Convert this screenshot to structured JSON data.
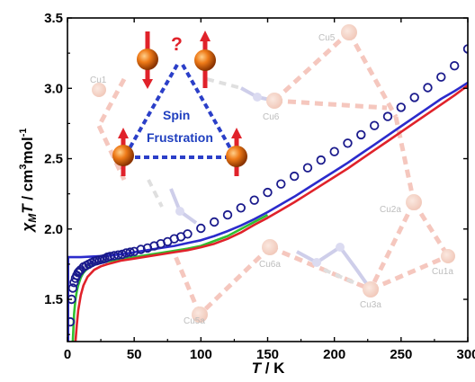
{
  "chart_data": {
    "type": "line",
    "xlabel": {
      "italic": "T",
      "rest": " / K"
    },
    "ylabel": {
      "chi": "χ",
      "sub": "M",
      "T": "T",
      "unit1": " / cm",
      "sup1": "3",
      "unit2": "mol",
      "sup2": "-1"
    },
    "xlim": [
      0,
      300
    ],
    "ylim": [
      1.2,
      3.5
    ],
    "xticks": [
      0,
      50,
      100,
      150,
      200,
      250,
      300
    ],
    "yticks": [
      1.5,
      2.0,
      2.5,
      3.0,
      3.5
    ],
    "grid": false,
    "legend": "none",
    "series": [
      {
        "style": "open-circles",
        "color": "#1a1a8c",
        "x": [
          2,
          3,
          4,
          5,
          6,
          7,
          8,
          9,
          10,
          12,
          14,
          16,
          18,
          20,
          22,
          24,
          26,
          28,
          30,
          32,
          35,
          38,
          41,
          44,
          47,
          50,
          55,
          60,
          65,
          70,
          75,
          80,
          85,
          90,
          100,
          110,
          120,
          130,
          140,
          150,
          160,
          170,
          180,
          190,
          200,
          210,
          220,
          230,
          240,
          250,
          260,
          270,
          280,
          290,
          300
        ],
        "y": [
          1.34,
          1.5,
          1.58,
          1.62,
          1.65,
          1.67,
          1.69,
          1.7,
          1.71,
          1.73,
          1.74,
          1.75,
          1.76,
          1.77,
          1.775,
          1.78,
          1.785,
          1.79,
          1.8,
          1.805,
          1.81,
          1.815,
          1.82,
          1.83,
          1.835,
          1.84,
          1.855,
          1.865,
          1.88,
          1.895,
          1.91,
          1.93,
          1.945,
          1.965,
          2.005,
          2.05,
          2.1,
          2.15,
          2.205,
          2.26,
          2.32,
          2.375,
          2.435,
          2.49,
          2.55,
          2.61,
          2.67,
          2.735,
          2.8,
          2.865,
          2.935,
          3.005,
          3.08,
          3.16,
          3.28
        ]
      },
      {
        "style": "line",
        "color": "#2b2bcc",
        "x": [
          0.5,
          0.5,
          1,
          2,
          5,
          10,
          20,
          30,
          40,
          50,
          60,
          70,
          80,
          90,
          100,
          110,
          120,
          130,
          140,
          150,
          160,
          170,
          180,
          190,
          200,
          210,
          220,
          230,
          240,
          250,
          260,
          270,
          280,
          290,
          300
        ],
        "y": [
          1.2,
          1.8,
          1.8,
          1.8,
          1.8,
          1.8,
          1.805,
          1.81,
          1.82,
          1.835,
          1.85,
          1.865,
          1.88,
          1.9,
          1.92,
          1.95,
          1.985,
          2.025,
          2.07,
          2.12,
          2.175,
          2.23,
          2.29,
          2.35,
          2.41,
          2.47,
          2.535,
          2.6,
          2.665,
          2.73,
          2.795,
          2.86,
          2.925,
          2.98,
          3.04
        ]
      },
      {
        "style": "line",
        "color": "#2fbf2f",
        "x": [
          4,
          5,
          6,
          7,
          8,
          10,
          12,
          15,
          20,
          25,
          30,
          40,
          50,
          60,
          70,
          80,
          90,
          100,
          120,
          150
        ],
        "y": [
          1.2,
          1.4,
          1.5,
          1.56,
          1.6,
          1.655,
          1.69,
          1.72,
          1.745,
          1.76,
          1.77,
          1.785,
          1.8,
          1.815,
          1.83,
          1.845,
          1.86,
          1.88,
          1.95,
          2.1
        ]
      },
      {
        "style": "line",
        "color": "#e0222a",
        "x": [
          6,
          7,
          8,
          10,
          12,
          15,
          20,
          25,
          30,
          40,
          50,
          60,
          70,
          80,
          90,
          100,
          110,
          120,
          130,
          140,
          150,
          160,
          170,
          180,
          190,
          200,
          210,
          220,
          230,
          240,
          250,
          260,
          270,
          280,
          290,
          300
        ],
        "y": [
          1.2,
          1.32,
          1.42,
          1.53,
          1.6,
          1.66,
          1.71,
          1.735,
          1.75,
          1.775,
          1.79,
          1.805,
          1.82,
          1.835,
          1.85,
          1.87,
          1.895,
          1.93,
          1.975,
          2.03,
          2.08,
          2.135,
          2.19,
          2.25,
          2.31,
          2.37,
          2.43,
          2.495,
          2.56,
          2.625,
          2.69,
          2.755,
          2.82,
          2.885,
          2.95,
          3.02
        ]
      }
    ]
  },
  "inset": {
    "question": "?",
    "spin": "Spin",
    "frustration": "Frustration"
  },
  "background_labels": [
    "Cu5",
    "Cu1",
    "Cu6",
    "Cu2a",
    "Cu6a",
    "Cu1a",
    "Cu3a",
    "Cu5a"
  ],
  "colors": {
    "sphere": "#e8761a",
    "arrow": "#e0222a",
    "triangle": "#2b3fc8",
    "bg_structure": "#f4c2b8",
    "bg_gray": "#d8d8d8"
  }
}
